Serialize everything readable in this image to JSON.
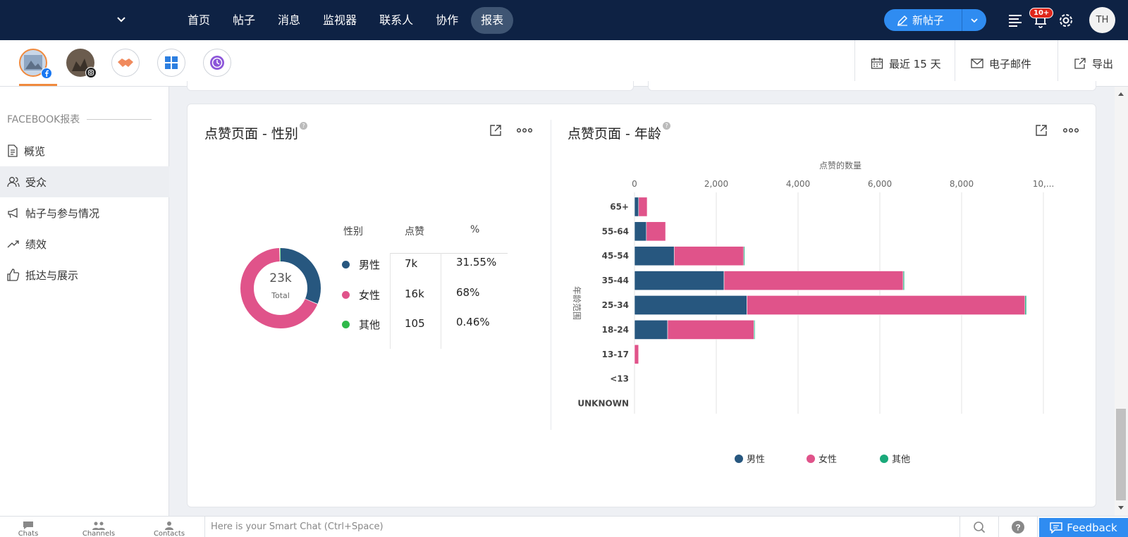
{
  "topnav": {
    "items": [
      "首页",
      "帖子",
      "消息",
      "监视器",
      "联系人",
      "协作",
      "报表"
    ],
    "active_index": 6,
    "new_post_label": "新帖子",
    "notification_badge": "10+",
    "avatar_initials": "TH"
  },
  "subbar": {
    "channels": [
      "facebook-page",
      "instagram-account",
      "handshake",
      "dashboard",
      "timer"
    ],
    "date_range_label": "最近 15 天",
    "email_label": "电子邮件",
    "export_label": "导出"
  },
  "sidebar": {
    "heading": "FACEBOOK报表",
    "items": [
      {
        "label": "概览",
        "icon": "document-icon"
      },
      {
        "label": "受众",
        "icon": "people-icon"
      },
      {
        "label": "帖子与参与情况",
        "icon": "megaphone-icon"
      },
      {
        "label": "绩效",
        "icon": "trend-icon"
      },
      {
        "label": "抵达与展示",
        "icon": "thumbs-up-icon"
      }
    ],
    "active_index": 1
  },
  "gender_panel": {
    "title": "点赞页面 - 性别",
    "table_headers": [
      "性别",
      "点赞",
      "%"
    ],
    "rows": [
      {
        "label": "男性",
        "likes": "7k",
        "percent": "31.55%",
        "color": "#27577f"
      },
      {
        "label": "女性",
        "likes": "16k",
        "percent": "68%",
        "color": "#e0538a"
      },
      {
        "label": "其他",
        "likes": "105",
        "percent": "0.46%",
        "color": "#2fb94a"
      }
    ],
    "donut_total": "23k",
    "donut_total_label": "Total"
  },
  "age_panel": {
    "title": "点赞页面 - 年龄"
  },
  "chart_data": {
    "type": "bar",
    "orientation": "horizontal",
    "stacked": true,
    "xlabel": "点赞的数量",
    "ylabel": "年龄范围",
    "x_ticks": [
      "0",
      "2,000",
      "4,000",
      "6,000",
      "8,000",
      "10,..."
    ],
    "xlim": [
      0,
      10000
    ],
    "categories": [
      "65+",
      "55-64",
      "45-54",
      "35-44",
      "25-34",
      "18-24",
      "13-17",
      "<13",
      "UNKNOWN"
    ],
    "series": [
      {
        "name": "男性",
        "color": "#27577f",
        "values": [
          100,
          290,
          970,
          2190,
          2750,
          810,
          0,
          0,
          0
        ]
      },
      {
        "name": "女性",
        "color": "#e0538a",
        "values": [
          210,
          470,
          1700,
          4380,
          6800,
          2110,
          100,
          0,
          0
        ]
      },
      {
        "name": "其他",
        "color": "#1aa97a",
        "values": [
          0,
          0,
          15,
          30,
          35,
          5,
          0,
          0,
          0
        ]
      }
    ],
    "grid": true,
    "legend_position": "bottom"
  },
  "bottombar": {
    "items": [
      "Chats",
      "Channels",
      "Contacts"
    ],
    "smartchat_placeholder": "Here is your Smart Chat (Ctrl+Space)",
    "feedback_label": "Feedback"
  }
}
